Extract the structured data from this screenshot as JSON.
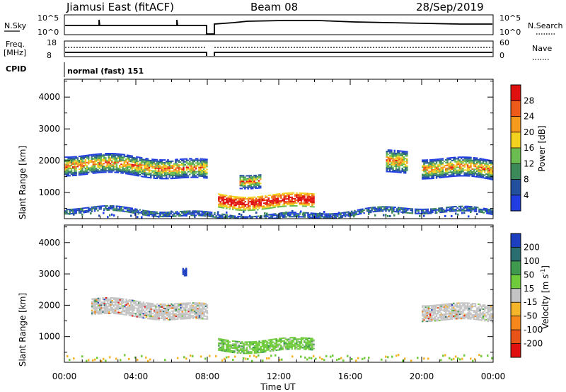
{
  "header": {
    "title": "Jiamusi East (fitACF)",
    "beam": "Beam 08",
    "date": "28/Sep/2019"
  },
  "summary_panels": {
    "nsky_label": "N.Sky",
    "nsky_ticks": [
      "10^5",
      "10^0"
    ],
    "nsearch_label": "N.Search",
    "nsearch_ticks": [
      "10^5",
      "10^0"
    ],
    "freq_label_1": "Freq.",
    "freq_label_2": "[MHz]",
    "freq_ticks": [
      "18",
      "8"
    ],
    "nave_label": "Nave",
    "nave_ticks": [
      "60",
      "0"
    ],
    "cpid_label": "CPID",
    "cpid_value": "normal (fast) 151"
  },
  "chart_data": [
    {
      "type": "heatmap",
      "title": "",
      "ylabel": "Slant Range [km]",
      "xlabel": "",
      "x_ticks": [
        "00:00",
        "04:00",
        "08:00",
        "12:00",
        "16:00",
        "20:00",
        "00:00"
      ],
      "y_ticks": [
        1000,
        2000,
        3000,
        4000
      ],
      "ylim": [
        180,
        4560
      ],
      "xlim_hours": [
        0,
        24
      ],
      "colorbar": {
        "label": "Power [dB]",
        "ticks": [
          "4",
          "8",
          "12",
          "16",
          "20",
          "24",
          "28"
        ],
        "colors": [
          "#1f3de0",
          "#23509e",
          "#3c8a59",
          "#6bbd52",
          "#f2d21e",
          "#f59a1c",
          "#ee5a18",
          "#e01010"
        ]
      },
      "features": [
        {
          "name": "band_00_08",
          "t_start": 0.0,
          "t_end": 8.0,
          "range_center": 1750,
          "thickness": 600
        },
        {
          "name": "enhanced_09_14",
          "t_start": 8.6,
          "t_end": 14.0,
          "range_center": 820,
          "thickness": 450
        },
        {
          "name": "patch_10",
          "t_start": 9.8,
          "t_end": 11.0,
          "range_center": 1500,
          "thickness": 450
        },
        {
          "name": "patch_18_19",
          "t_start": 18.0,
          "t_end": 19.2,
          "range_center": 1850,
          "thickness": 700
        },
        {
          "name": "band_20_24",
          "t_start": 20.0,
          "t_end": 24.0,
          "range_center": 1650,
          "thickness": 600
        },
        {
          "name": "near_range",
          "t_start": 0.0,
          "t_end": 24.0,
          "range_center": 330,
          "thickness": 150
        }
      ]
    },
    {
      "type": "heatmap",
      "title": "",
      "ylabel": "Slant Range [km]",
      "xlabel": "Time UT",
      "x_ticks": [
        "00:00",
        "04:00",
        "08:00",
        "12:00",
        "16:00",
        "20:00",
        "00:00"
      ],
      "y_ticks": [
        1000,
        2000,
        3000,
        4000
      ],
      "ylim": [
        180,
        4560
      ],
      "xlim_hours": [
        0,
        24
      ],
      "colorbar": {
        "label": "Velocity [m s",
        "label_sup": "-1",
        "label_end": "]",
        "ticks": [
          "200",
          "100",
          "50",
          "15",
          "-15",
          "-50",
          "-100",
          "-200"
        ],
        "colors": [
          "#1c3fbf",
          "#2b6e72",
          "#3f9a4f",
          "#6fcb3a",
          "#c4c4c4",
          "#f4b52a",
          "#f5871b",
          "#e85417",
          "#e01010"
        ]
      },
      "features": [
        {
          "name": "ground_scatter_00_08",
          "t_start": 1.5,
          "t_end": 8.0,
          "range_center": 1800,
          "thickness": 500,
          "velocity": 0
        },
        {
          "name": "green_09_14",
          "t_start": 8.6,
          "t_end": 14.0,
          "range_center": 820,
          "thickness": 400,
          "velocity": 30
        },
        {
          "name": "grey_20_24",
          "t_start": 20.0,
          "t_end": 24.0,
          "range_center": 1650,
          "thickness": 500,
          "velocity": 0
        },
        {
          "name": "blue_spot",
          "t_start": 6.6,
          "t_end": 6.8,
          "range_center": 3050,
          "thickness": 250,
          "velocity": 200
        }
      ]
    }
  ]
}
